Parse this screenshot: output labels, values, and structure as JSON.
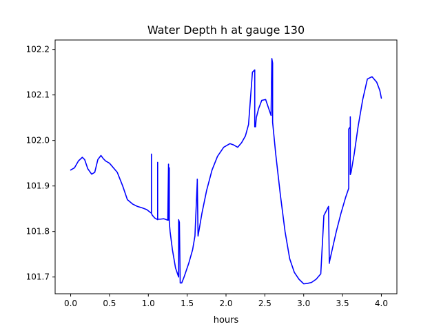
{
  "chart_data": {
    "type": "line",
    "title": "Water Depth h at gauge 130",
    "xlabel": "hours",
    "ylabel": "",
    "xlim": [
      -0.2,
      4.2
    ],
    "ylim": [
      101.6632,
      102.2207
    ],
    "xticks": [
      0.0,
      0.5,
      1.0,
      1.5,
      2.0,
      2.5,
      3.0,
      3.5,
      4.0
    ],
    "xtick_labels": [
      "0.0",
      "0.5",
      "1.0",
      "1.5",
      "2.0",
      "2.5",
      "3.0",
      "3.5",
      "4.0"
    ],
    "yticks": [
      101.7,
      101.8,
      101.9,
      102.0,
      102.1,
      102.2
    ],
    "ytick_labels": [
      "101.7",
      "101.8",
      "101.9",
      "102.0",
      "102.1",
      "102.2"
    ],
    "grid": false,
    "line_color": "#0000ff",
    "series": [
      {
        "x": [
          0.0,
          0.05,
          0.1,
          0.15,
          0.18,
          0.22,
          0.27,
          0.31,
          0.35,
          0.39,
          0.42,
          0.45,
          0.5,
          0.6,
          0.67,
          0.73,
          0.8,
          0.86,
          0.92,
          0.98,
          1.04,
          1.04,
          1.04,
          1.05,
          1.08,
          1.12,
          1.12,
          1.12,
          1.15,
          1.2,
          1.25,
          1.26,
          1.26,
          1.27,
          1.27,
          1.28,
          1.31,
          1.35,
          1.39,
          1.39,
          1.4,
          1.41,
          1.41,
          1.43,
          1.46,
          1.52,
          1.57,
          1.6,
          1.63,
          1.63,
          1.64,
          1.64,
          1.69,
          1.75,
          1.82,
          1.89,
          1.97,
          2.05,
          2.1,
          2.15,
          2.2,
          2.25,
          2.29,
          2.34,
          2.37,
          2.37,
          2.38,
          2.39,
          2.42,
          2.46,
          2.51,
          2.55,
          2.58,
          2.59,
          2.6,
          2.6,
          2.6,
          2.64,
          2.7,
          2.76,
          2.82,
          2.88,
          2.94,
          3.0,
          3.05,
          3.1,
          3.16,
          3.22,
          3.26,
          3.26,
          3.29,
          3.32,
          3.33,
          3.33,
          3.38,
          3.42,
          3.48,
          3.54,
          3.58,
          3.58,
          3.6,
          3.6,
          3.6,
          3.61,
          3.65,
          3.7,
          3.76,
          3.82,
          3.88,
          3.94,
          3.98,
          4.0
        ],
        "y": [
          101.935,
          101.94,
          101.955,
          101.963,
          101.958,
          101.938,
          101.926,
          101.93,
          101.958,
          101.967,
          101.96,
          101.955,
          101.95,
          101.93,
          101.9,
          101.87,
          101.86,
          101.855,
          101.852,
          101.848,
          101.84,
          101.97,
          101.84,
          101.836,
          101.83,
          101.826,
          101.952,
          101.827,
          101.827,
          101.828,
          101.825,
          101.948,
          101.825,
          101.94,
          101.82,
          101.8,
          101.76,
          101.72,
          101.7,
          101.826,
          101.82,
          101.69,
          101.687,
          101.687,
          101.7,
          101.73,
          101.76,
          101.79,
          101.91,
          101.915,
          101.79,
          101.79,
          101.84,
          101.89,
          101.935,
          101.965,
          101.985,
          101.993,
          101.99,
          101.985,
          101.995,
          102.01,
          102.035,
          102.15,
          102.155,
          102.03,
          102.03,
          102.05,
          102.07,
          102.088,
          102.09,
          102.07,
          102.055,
          102.18,
          102.17,
          102.04,
          102.04,
          101.97,
          101.88,
          101.8,
          101.74,
          101.71,
          101.695,
          101.685,
          101.686,
          101.688,
          101.695,
          101.707,
          101.835,
          101.835,
          101.845,
          101.855,
          101.73,
          101.732,
          101.77,
          101.8,
          101.84,
          101.875,
          101.895,
          102.025,
          102.03,
          102.052,
          101.925,
          101.93,
          101.97,
          102.03,
          102.09,
          102.135,
          102.14,
          102.128,
          102.11,
          102.093
        ]
      }
    ]
  }
}
